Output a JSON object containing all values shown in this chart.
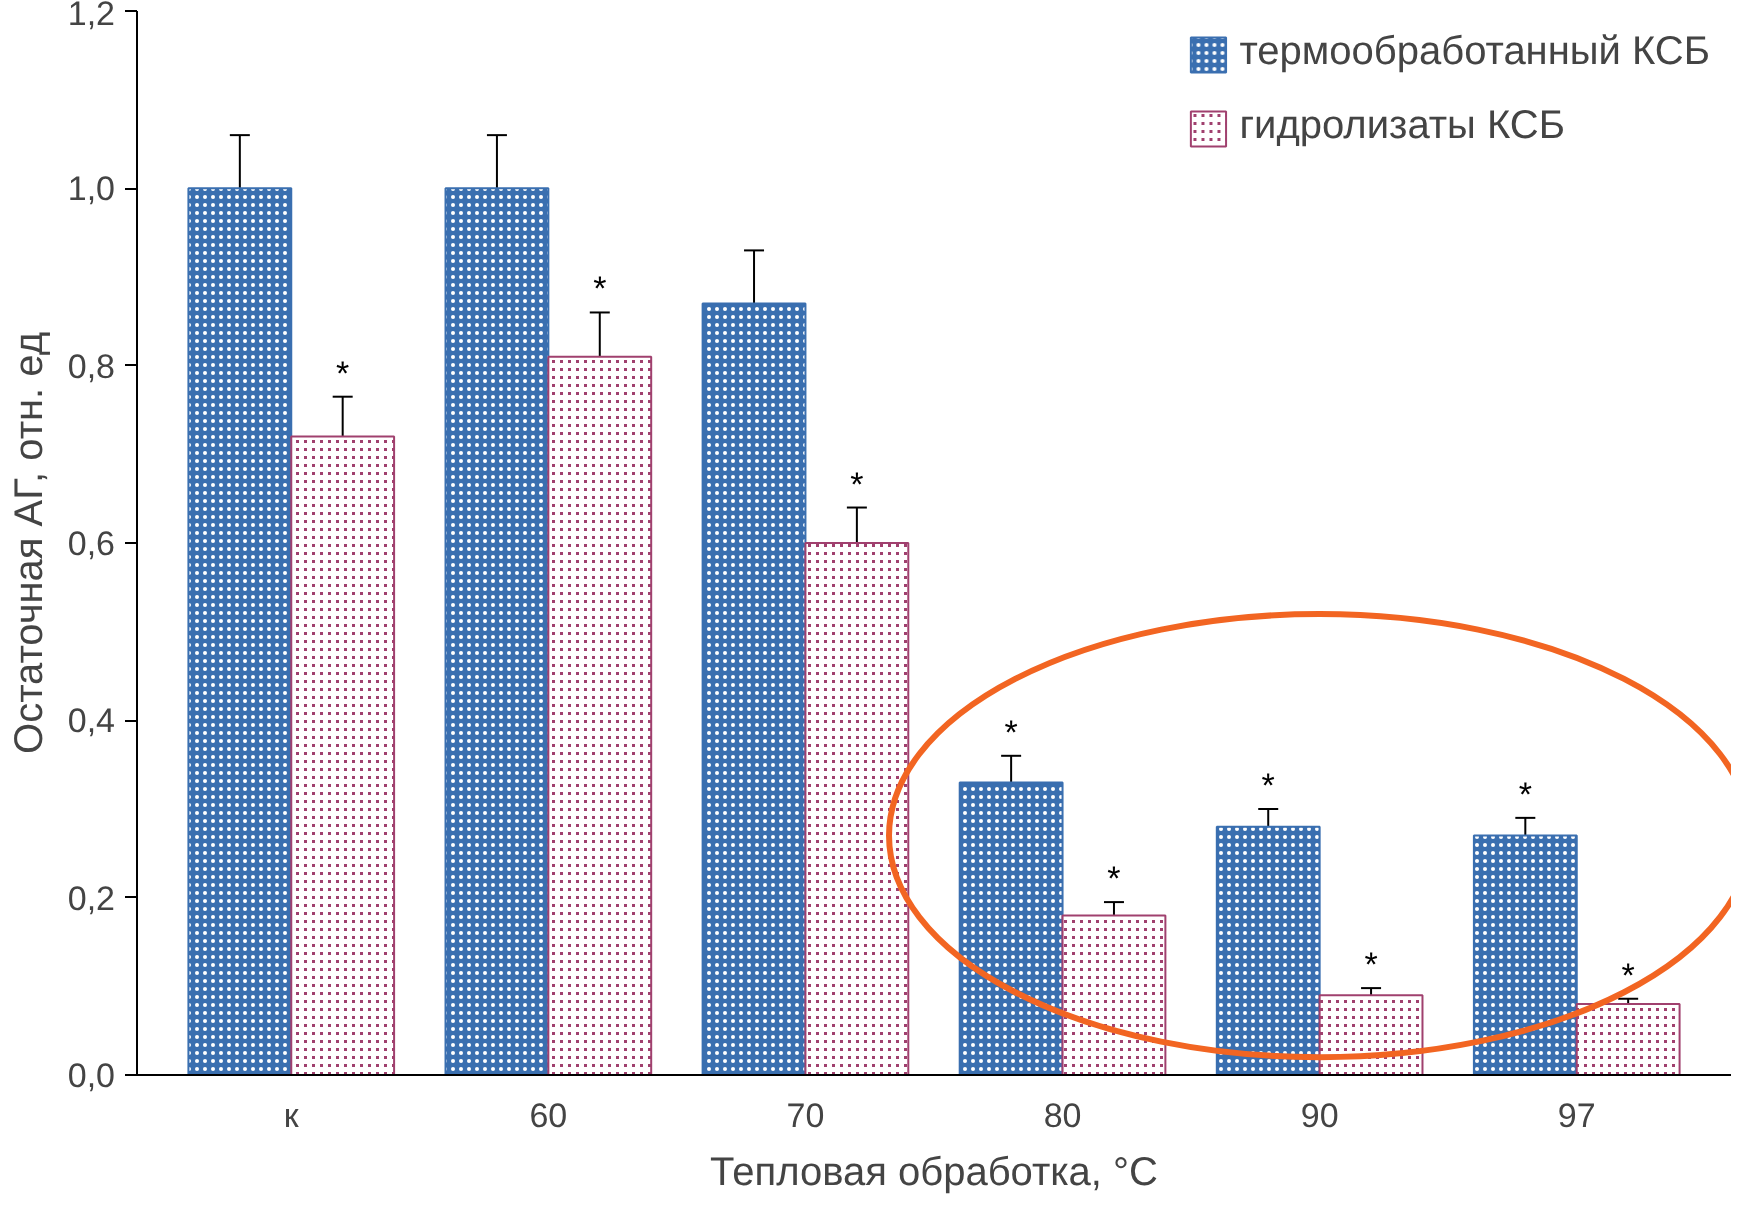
{
  "chart_data": {
    "type": "bar",
    "xlabel": "Тепловая обработка, °C",
    "ylabel": "Остаточная АГ, отн. ед",
    "categories": [
      "к",
      "60",
      "70",
      "80",
      "90",
      "97"
    ],
    "series": [
      {
        "name": "термообработанный КСБ",
        "color": "#3a6fb0",
        "values": [
          1.0,
          1.0,
          0.87,
          0.33,
          0.28,
          0.27
        ],
        "value_labels": [
          null,
          null,
          null,
          "*",
          "*",
          "*"
        ],
        "errors": [
          0.06,
          0.06,
          0.06,
          0.03,
          0.02,
          0.02
        ]
      },
      {
        "name": "гидролизаты КСБ",
        "color": "#a0406e",
        "values": [
          0.72,
          0.81,
          0.6,
          0.18,
          0.09,
          0.08
        ],
        "value_labels": [
          "*",
          "*",
          "*",
          "*",
          "*",
          "*"
        ],
        "errors": [
          0.045,
          0.05,
          0.04,
          0.015,
          0.008,
          0.006
        ]
      }
    ],
    "ylim": [
      0,
      1.2
    ],
    "yticks": [
      {
        "value": 0,
        "label": "0,0"
      },
      {
        "value": 0.2,
        "label": "0,2"
      },
      {
        "value": 0.4,
        "label": "0,4"
      },
      {
        "value": 0.6,
        "label": "0,6"
      },
      {
        "value": 0.8,
        "label": "0,8"
      },
      {
        "value": 1.0,
        "label": "1,0"
      },
      {
        "value": 1.2,
        "label": "1,2"
      }
    ],
    "grid": false,
    "legend": "top right"
  }
}
